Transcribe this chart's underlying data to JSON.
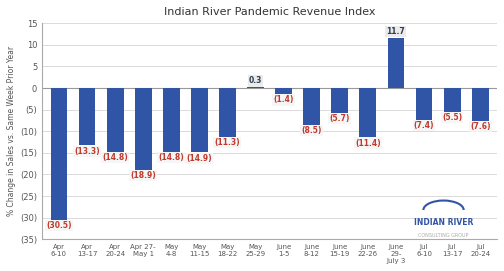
{
  "title": "Indian River Pandemic Revenue Index",
  "ylabel": "% Change in Sales vs. Same Week Prior Year",
  "categories": [
    "Apr\n6-10",
    "Apr\n13-17",
    "Apr\n20-24",
    "Apr 27-\nMay 1",
    "May\n4-8",
    "May\n11-15",
    "May\n18-22",
    "May\n25-29",
    "June\n1-5",
    "June\n8-12",
    "June\n15-19",
    "June\n22-26",
    "June\n29-\nJuly 3",
    "Jul\n6-10",
    "Jul\n13-17",
    "Jul\n20-24"
  ],
  "values": [
    -30.5,
    -13.3,
    -14.8,
    -18.9,
    -14.8,
    -14.9,
    -11.3,
    0.3,
    -1.4,
    -8.5,
    -5.7,
    -11.4,
    11.7,
    -7.4,
    -5.5,
    -7.6
  ],
  "labels": [
    "(30.5)",
    "(13.3)",
    "(14.8)",
    "(18.9)",
    "(14.8)",
    "(14.9)",
    "(11.3)",
    "0.3",
    "(1.4)",
    "(8.5)",
    "(5.7)",
    "(11.4)",
    "11.7",
    "(7.4)",
    "(5.5)",
    "(7.6)"
  ],
  "bar_color": "#3155A6",
  "label_color_neg": "#C0392B",
  "label_color_pos": "#2C3E50",
  "label_bg_neg": "#F5F5F5",
  "label_bg_pos": "#E8E8E8",
  "ylim": [
    -35,
    15
  ],
  "yticks": [
    -35,
    -30,
    -25,
    -20,
    -15,
    -10,
    -5,
    0,
    5,
    10,
    15
  ],
  "ytick_labels": [
    "(35)",
    "(30)",
    "(25)",
    "(20)",
    "(15)",
    "(10)",
    "(5)",
    "0",
    "5",
    "10",
    "15"
  ],
  "background_color": "#FFFFFF",
  "grid_color": "#CCCCCC"
}
